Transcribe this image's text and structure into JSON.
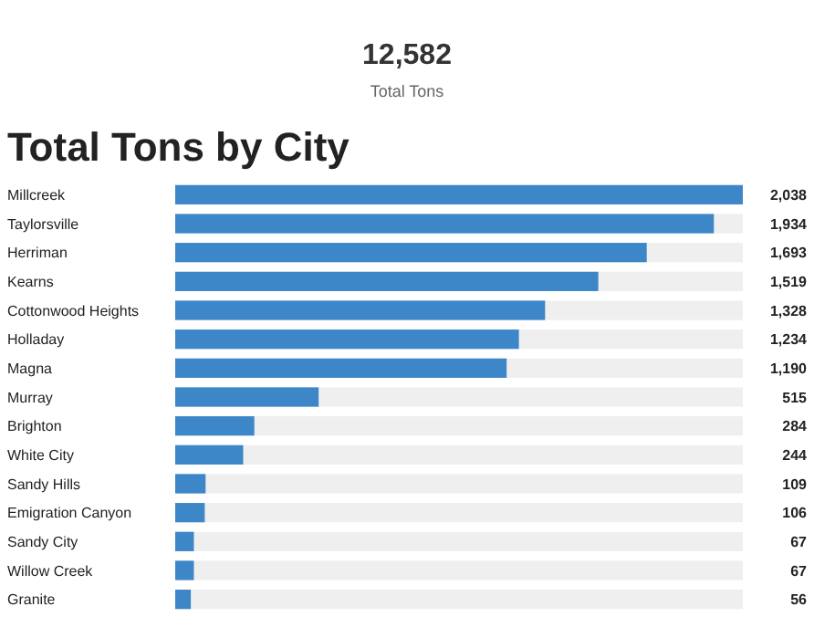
{
  "chart_data": {
    "type": "bar",
    "orientation": "horizontal",
    "title": "Total Tons by City",
    "annotations": [
      "12,582",
      "Total Tons"
    ],
    "categories": [
      "Millcreek",
      "Taylorsville",
      "Herriman",
      "Kearns",
      "Cottonwood Heights",
      "Holladay",
      "Magna",
      "Murray",
      "Brighton",
      "White City",
      "Sandy Hills",
      "Emigration Canyon",
      "Sandy City",
      "Willow Creek",
      "Granite"
    ],
    "values": [
      2038,
      1934,
      1693,
      1519,
      1328,
      1234,
      1190,
      515,
      284,
      244,
      109,
      106,
      67,
      67,
      56
    ],
    "color": "#3d86c8",
    "value_labels": [
      "2,038",
      "1,934",
      "1,693",
      "1,519",
      "1,328",
      "1,234",
      "1,190",
      "515",
      "284",
      "244",
      "109",
      "106",
      "67",
      "67",
      "56"
    ]
  }
}
